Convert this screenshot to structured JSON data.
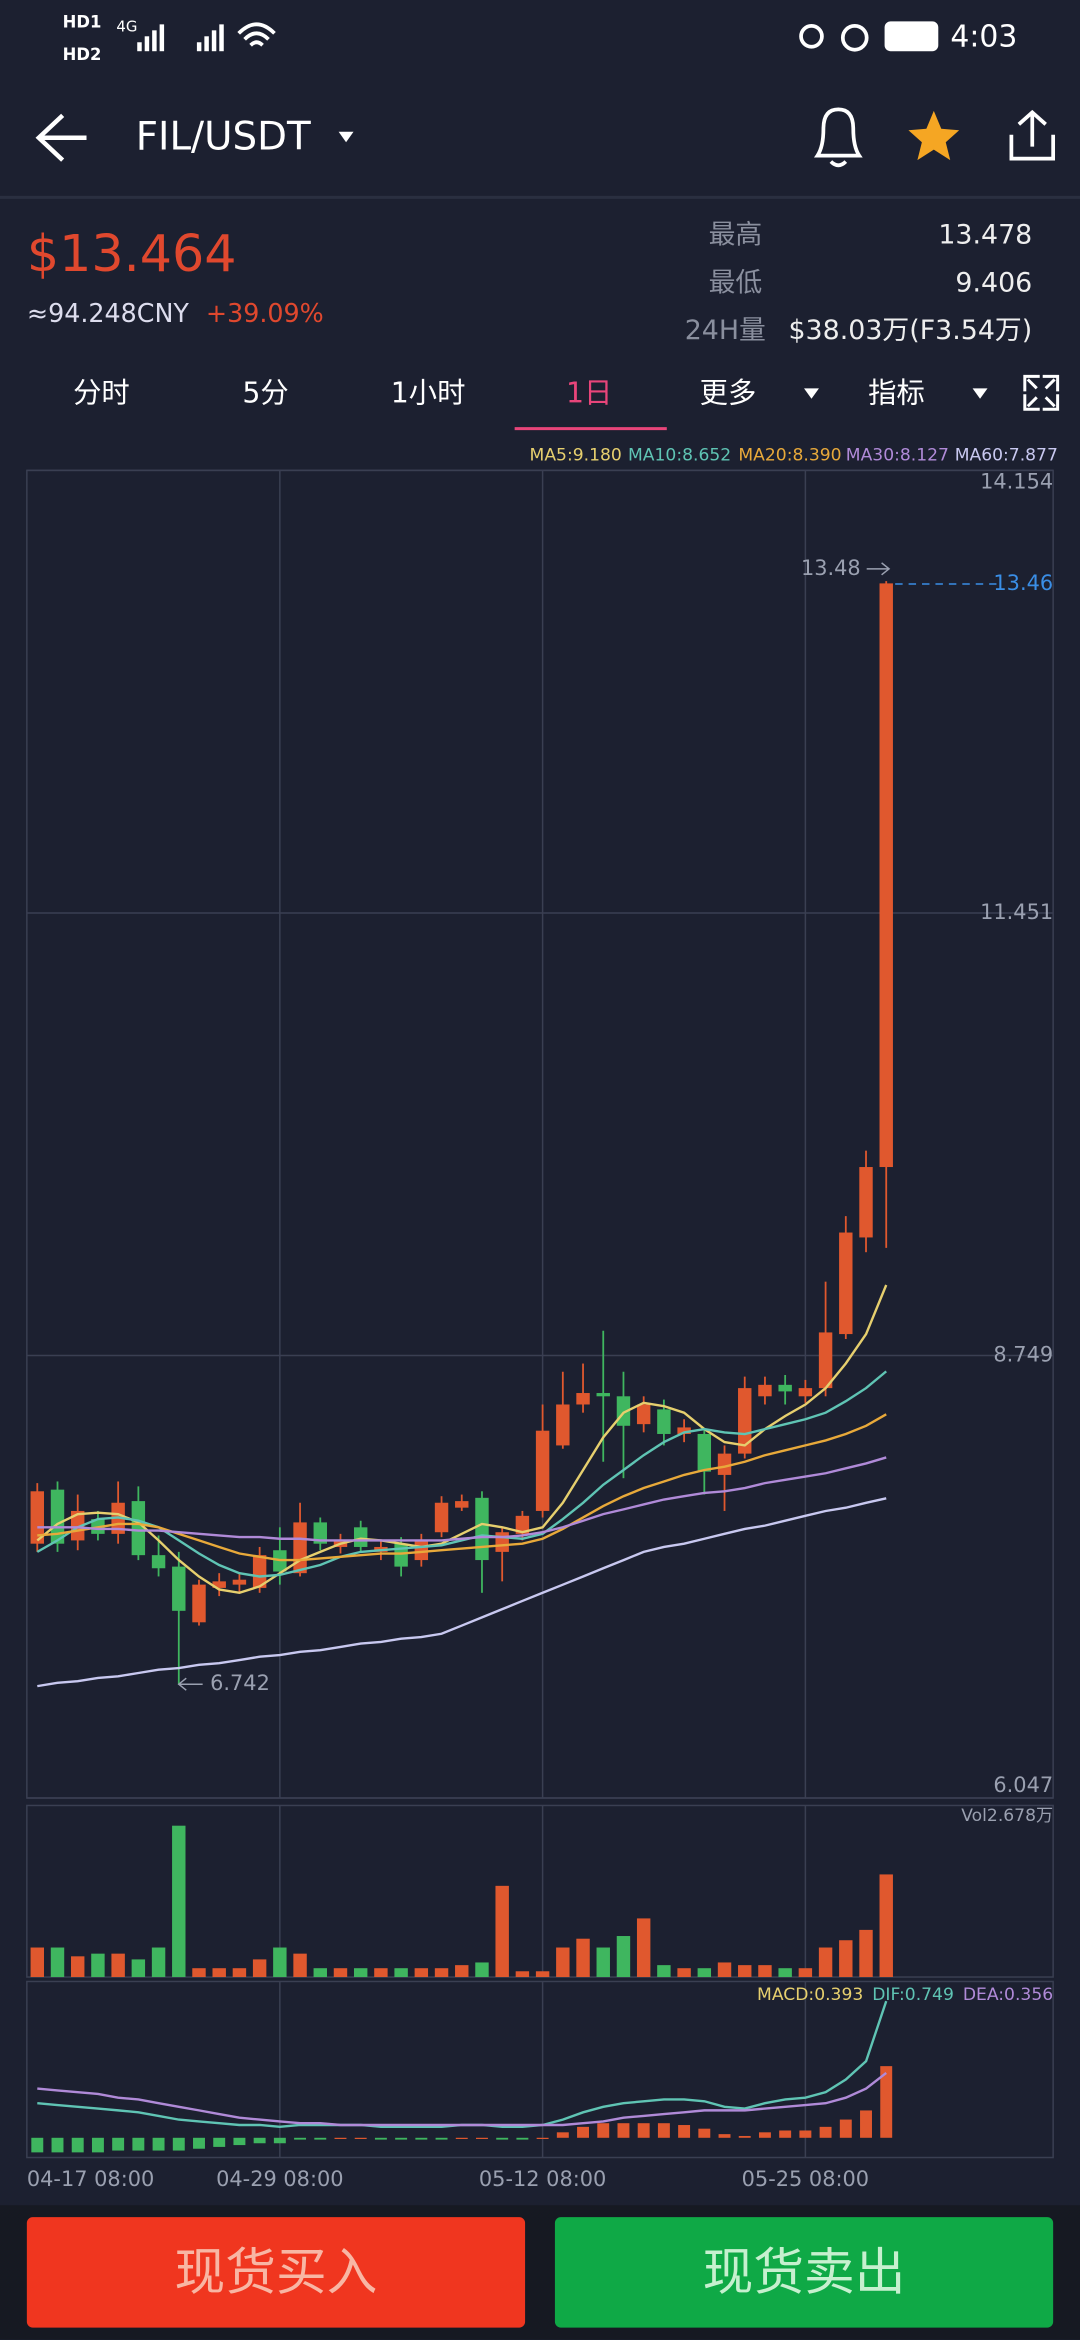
{
  "status_bar": {
    "time": "4:03",
    "sim1": "HD1",
    "sim2": "HD2",
    "network": "4G"
  },
  "header": {
    "pair": "FIL/USDT"
  },
  "ticker": {
    "price": "$13.464",
    "cny": "≈94.248CNY",
    "change": "+39.09%",
    "stats": [
      {
        "label": "最高",
        "value": "13.478"
      },
      {
        "label": "最低",
        "value": "9.406"
      },
      {
        "label": "24H量",
        "value": "$38.03万(F3.54万)"
      }
    ]
  },
  "tabs": [
    "分时",
    "5分",
    "1小时",
    "1日",
    "更多",
    "指标"
  ],
  "active_tab": 3,
  "buttons": {
    "buy": "现货买入",
    "sell": "现货卖出"
  },
  "chart_data": {
    "type": "candlestick",
    "categories": [
      "04-17 08:00",
      null,
      null,
      null,
      null,
      null,
      null,
      null,
      null,
      null,
      null,
      null,
      "04-29 08:00",
      null,
      null,
      null,
      null,
      null,
      null,
      null,
      null,
      null,
      null,
      null,
      null,
      "05-12 08:00",
      null,
      null,
      null,
      null,
      null,
      null,
      null,
      null,
      null,
      null,
      null,
      null,
      "05-25 08:00",
      null,
      null,
      null,
      null
    ],
    "open": [
      7.6,
      7.93,
      7.62,
      7.75,
      7.66,
      7.86,
      7.53,
      7.46,
      7.12,
      7.33,
      7.35,
      7.33,
      7.56,
      7.42,
      7.73,
      7.58,
      7.7,
      7.55,
      7.6,
      7.5,
      7.67,
      7.82,
      7.88,
      7.55,
      7.66,
      7.8,
      8.2,
      8.45,
      8.52,
      8.5,
      8.33,
      8.42,
      8.27,
      8.27,
      8.02,
      8.15,
      8.5,
      8.57,
      8.5,
      8.55,
      8.88,
      9.47,
      9.9
    ],
    "high": [
      7.97,
      7.98,
      7.9,
      7.8,
      7.98,
      7.95,
      7.65,
      7.55,
      7.38,
      7.42,
      7.42,
      7.58,
      7.7,
      7.85,
      7.76,
      7.66,
      7.74,
      7.62,
      7.64,
      7.66,
      7.89,
      7.9,
      7.92,
      7.7,
      7.8,
      8.45,
      8.65,
      8.7,
      8.9,
      8.65,
      8.5,
      8.48,
      8.36,
      8.3,
      8.2,
      8.62,
      8.62,
      8.63,
      8.6,
      9.2,
      9.6,
      10.0,
      13.478
    ],
    "low": [
      7.55,
      7.55,
      7.56,
      7.62,
      7.6,
      7.5,
      7.4,
      6.742,
      7.1,
      7.28,
      7.3,
      7.3,
      7.35,
      7.4,
      7.56,
      7.54,
      7.55,
      7.5,
      7.4,
      7.46,
      7.64,
      7.8,
      7.3,
      7.37,
      7.62,
      7.76,
      8.18,
      8.4,
      8.1,
      8.0,
      8.28,
      8.2,
      8.22,
      7.9,
      7.8,
      8.12,
      8.45,
      8.45,
      8.46,
      8.5,
      8.85,
      9.38,
      9.406
    ],
    "close": [
      7.92,
      7.6,
      7.8,
      7.66,
      7.85,
      7.53,
      7.45,
      7.19,
      7.35,
      7.37,
      7.38,
      7.53,
      7.43,
      7.73,
      7.6,
      7.62,
      7.58,
      7.58,
      7.46,
      7.62,
      7.85,
      7.86,
      7.5,
      7.67,
      7.77,
      8.29,
      8.45,
      8.52,
      8.5,
      8.32,
      8.45,
      8.27,
      8.31,
      8.04,
      8.15,
      8.55,
      8.57,
      8.53,
      8.55,
      8.89,
      9.5,
      9.9,
      13.464
    ],
    "up_color": "#e0582e",
    "down_color": "#3fb65f",
    "ylim": [
      6.047,
      14.154
    ],
    "yticks": [
      6.047,
      8.749,
      11.451,
      14.154
    ],
    "grid": true,
    "high_marker": 13.48,
    "low_marker": 6.742,
    "last_marker": 13.46,
    "last_color": "#3a8ee6",
    "series": [
      {
        "label": "MA5:9.180",
        "color": "#e6cf6e",
        "values": [
          7.62,
          7.72,
          7.78,
          7.79,
          7.78,
          7.73,
          7.62,
          7.5,
          7.4,
          7.32,
          7.3,
          7.34,
          7.42,
          7.5,
          7.55,
          7.6,
          7.63,
          7.62,
          7.6,
          7.58,
          7.6,
          7.66,
          7.72,
          7.7,
          7.67,
          7.7,
          7.85,
          8.05,
          8.25,
          8.4,
          8.46,
          8.44,
          8.4,
          8.3,
          8.22,
          8.2,
          8.3,
          8.38,
          8.45,
          8.55,
          8.7,
          8.88,
          9.18
        ]
      },
      {
        "label": "MA10:8.652",
        "color": "#5fc4b4",
        "values": [
          7.55,
          7.62,
          7.7,
          7.75,
          7.76,
          7.74,
          7.7,
          7.62,
          7.54,
          7.47,
          7.42,
          7.4,
          7.41,
          7.44,
          7.47,
          7.52,
          7.55,
          7.56,
          7.57,
          7.58,
          7.59,
          7.62,
          7.65,
          7.64,
          7.63,
          7.66,
          7.75,
          7.85,
          7.96,
          8.05,
          8.14,
          8.22,
          8.28,
          8.3,
          8.28,
          8.27,
          8.3,
          8.33,
          8.36,
          8.4,
          8.47,
          8.55,
          8.652
        ]
      },
      {
        "label": "MA20:8.390",
        "color": "#e8a93a",
        "values": [
          7.65,
          7.66,
          7.68,
          7.7,
          7.72,
          7.72,
          7.7,
          7.66,
          7.62,
          7.58,
          7.54,
          7.52,
          7.5,
          7.5,
          7.51,
          7.52,
          7.53,
          7.54,
          7.54,
          7.55,
          7.56,
          7.57,
          7.58,
          7.59,
          7.6,
          7.63,
          7.69,
          7.76,
          7.83,
          7.89,
          7.94,
          7.98,
          8.02,
          8.05,
          8.07,
          8.1,
          8.14,
          8.17,
          8.2,
          8.23,
          8.27,
          8.32,
          8.39
        ]
      },
      {
        "label": "MA30:8.127",
        "color": "#b08ad8",
        "values": [
          7.7,
          7.7,
          7.7,
          7.69,
          7.69,
          7.68,
          7.68,
          7.67,
          7.66,
          7.65,
          7.64,
          7.64,
          7.63,
          7.63,
          7.62,
          7.62,
          7.62,
          7.62,
          7.62,
          7.62,
          7.62,
          7.63,
          7.64,
          7.64,
          7.65,
          7.67,
          7.7,
          7.74,
          7.78,
          7.81,
          7.84,
          7.87,
          7.89,
          7.91,
          7.92,
          7.94,
          7.97,
          7.99,
          8.01,
          8.03,
          8.06,
          8.09,
          8.127
        ]
      },
      {
        "label": "MA60:7.877",
        "color": "#c8c8f0",
        "values": [
          6.73,
          6.75,
          6.76,
          6.78,
          6.79,
          6.81,
          6.83,
          6.84,
          6.86,
          6.87,
          6.89,
          6.91,
          6.92,
          6.94,
          6.95,
          6.97,
          6.99,
          7.0,
          7.02,
          7.03,
          7.05,
          7.1,
          7.15,
          7.2,
          7.25,
          7.3,
          7.35,
          7.4,
          7.45,
          7.5,
          7.55,
          7.58,
          7.6,
          7.63,
          7.66,
          7.69,
          7.71,
          7.74,
          7.77,
          7.8,
          7.82,
          7.85,
          7.877
        ]
      }
    ],
    "volume": {
      "label": "Vol2.678万",
      "ylim": [
        0,
        4.4
      ],
      "values": [
        0.77,
        0.77,
        0.54,
        0.61,
        0.61,
        0.46,
        0.77,
        3.95,
        0.23,
        0.23,
        0.23,
        0.46,
        0.77,
        0.61,
        0.23,
        0.23,
        0.23,
        0.23,
        0.23,
        0.23,
        0.23,
        0.31,
        0.38,
        2.38,
        0.15,
        0.15,
        0.77,
        1.0,
        0.77,
        1.07,
        1.53,
        0.31,
        0.23,
        0.23,
        0.38,
        0.31,
        0.31,
        0.23,
        0.23,
        0.77,
        0.96,
        1.23,
        2.678
      ]
    },
    "macd": {
      "ylim": [
        -0.1,
        0.8
      ],
      "labels": [
        {
          "text": "MACD:0.393",
          "color": "#e6cf6e"
        },
        {
          "text": "DIF:0.749",
          "color": "#5fc4b4"
        },
        {
          "text": "DEA:0.356",
          "color": "#b08ad8"
        }
      ],
      "histogram": [
        -0.08,
        -0.08,
        -0.08,
        -0.08,
        -0.07,
        -0.07,
        -0.07,
        -0.07,
        -0.06,
        -0.05,
        -0.04,
        -0.03,
        -0.03,
        -0.01,
        -0.01,
        0,
        0,
        -0.01,
        -0.01,
        -0.01,
        -0.01,
        0,
        0,
        -0.01,
        -0.01,
        0,
        0.03,
        0.06,
        0.08,
        0.08,
        0.08,
        0.08,
        0.07,
        0.05,
        0.02,
        0.01,
        0.03,
        0.04,
        0.04,
        0.06,
        0.1,
        0.15,
        0.393
      ],
      "dif": [
        0.19,
        0.18,
        0.17,
        0.16,
        0.15,
        0.14,
        0.12,
        0.1,
        0.09,
        0.08,
        0.07,
        0.07,
        0.06,
        0.07,
        0.07,
        0.07,
        0.07,
        0.06,
        0.06,
        0.06,
        0.06,
        0.07,
        0.07,
        0.06,
        0.06,
        0.07,
        0.1,
        0.14,
        0.17,
        0.19,
        0.2,
        0.21,
        0.21,
        0.2,
        0.17,
        0.16,
        0.19,
        0.21,
        0.22,
        0.25,
        0.32,
        0.42,
        0.749
      ],
      "dea": [
        0.27,
        0.26,
        0.25,
        0.24,
        0.22,
        0.21,
        0.19,
        0.17,
        0.15,
        0.13,
        0.11,
        0.1,
        0.09,
        0.08,
        0.08,
        0.07,
        0.07,
        0.07,
        0.07,
        0.07,
        0.07,
        0.07,
        0.07,
        0.07,
        0.07,
        0.07,
        0.07,
        0.08,
        0.09,
        0.11,
        0.12,
        0.13,
        0.14,
        0.15,
        0.15,
        0.15,
        0.16,
        0.17,
        0.18,
        0.19,
        0.22,
        0.27,
        0.356
      ]
    }
  }
}
